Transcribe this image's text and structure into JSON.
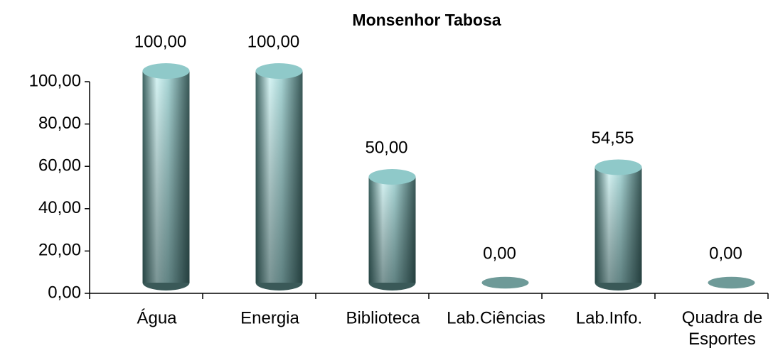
{
  "chart_data": {
    "type": "bar",
    "title": "Monsenhor Tabosa",
    "categories": [
      "Água",
      "Energia",
      "Biblioteca",
      "Lab.Ciências",
      "Lab.Info.",
      "Quadra de Esportes"
    ],
    "values": [
      100,
      100,
      50,
      0,
      54.55,
      0
    ],
    "value_labels": [
      "100,00",
      "100,00",
      "50,00",
      "0,00",
      "54,55",
      "0,00"
    ],
    "color": "#8fc9c9",
    "ylim": [
      0,
      100
    ],
    "yticks": [
      {
        "value": 0,
        "label": "0,00"
      },
      {
        "value": 20,
        "label": "20,00"
      },
      {
        "value": 40,
        "label": "40,00"
      },
      {
        "value": 60,
        "label": "60,00"
      },
      {
        "value": 80,
        "label": "80,00"
      },
      {
        "value": 100,
        "label": "100,00"
      }
    ]
  }
}
